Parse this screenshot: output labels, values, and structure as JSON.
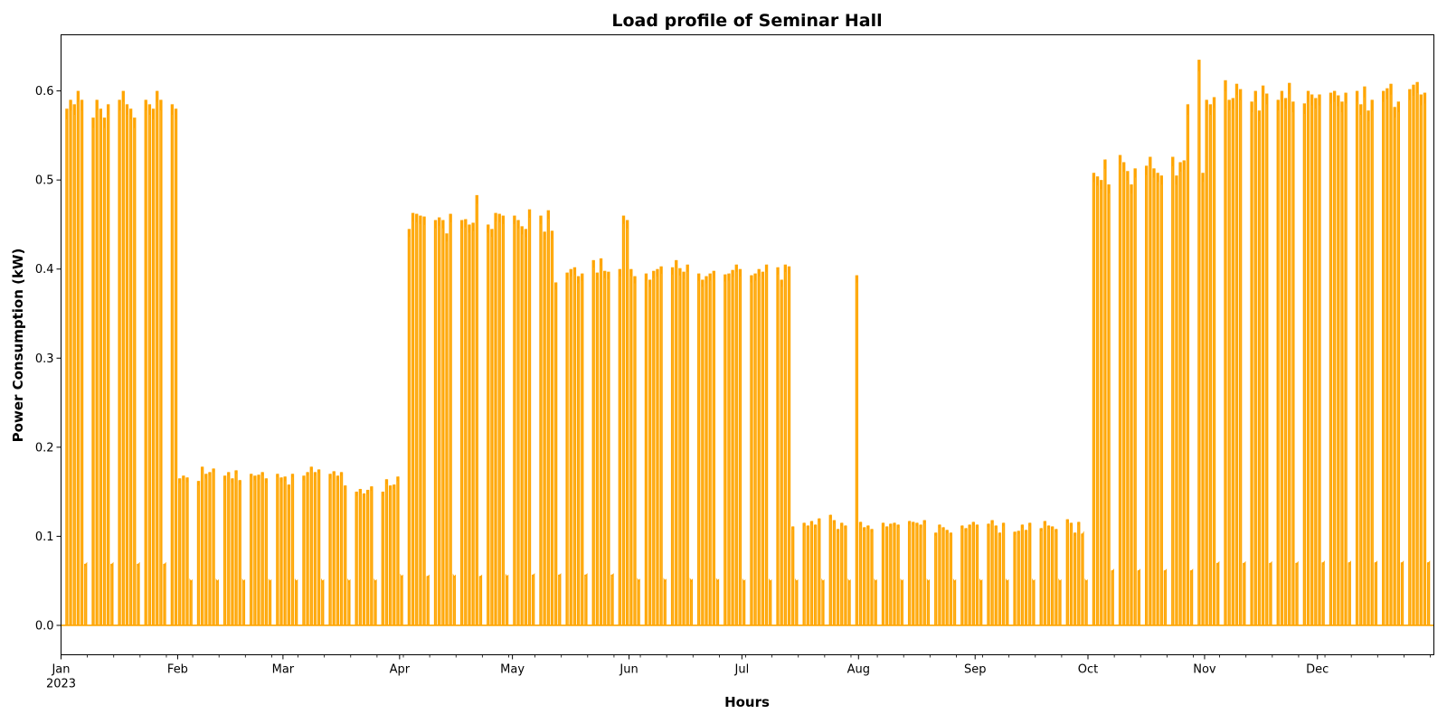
{
  "chart_data": {
    "type": "line",
    "title": "Load profile of Seminar Hall",
    "xlabel": "Hours",
    "ylabel": "Power Consumption (kW)",
    "x_range": [
      "2023-01-01",
      "2023-12-31"
    ],
    "ylim": [
      -0.033,
      0.663
    ],
    "y_ticks": [
      0.0,
      0.1,
      0.2,
      0.3,
      0.4,
      0.5,
      0.6
    ],
    "y_tick_labels": [
      "0.0",
      "0.1",
      "0.2",
      "0.3",
      "0.4",
      "0.5",
      "0.6"
    ],
    "x_ticks": [
      {
        "date": "2023-01-01",
        "label": "Jan",
        "sublabel": "2023"
      },
      {
        "date": "2023-02-01",
        "label": "Feb"
      },
      {
        "date": "2023-03-01",
        "label": "Mar"
      },
      {
        "date": "2023-04-01",
        "label": "Apr"
      },
      {
        "date": "2023-05-01",
        "label": "May"
      },
      {
        "date": "2023-06-01",
        "label": "Jun"
      },
      {
        "date": "2023-07-01",
        "label": "Jul"
      },
      {
        "date": "2023-08-01",
        "label": "Aug"
      },
      {
        "date": "2023-09-01",
        "label": "Sep"
      },
      {
        "date": "2023-10-01",
        "label": "Oct"
      },
      {
        "date": "2023-11-01",
        "label": "Nov"
      },
      {
        "date": "2023-12-01",
        "label": "Dec"
      }
    ],
    "grid": false,
    "legend": "none",
    "series_color": "#ffa500",
    "series": [
      {
        "values_description_note": "",
        "monthly_weekday_peak_kw": {
          "Jan": [
            0.58,
            0.59,
            0.585,
            0.6,
            0.59,
            0.57,
            0.59,
            0.58,
            0.57,
            0.585,
            0.59,
            0.6,
            0.585,
            0.58,
            0.57,
            0.59,
            0.585,
            0.58,
            0.6,
            0.59,
            0.585
          ],
          "Feb": [
            0.165,
            0.168,
            0.166,
            0.162,
            0.178,
            0.17,
            0.172,
            0.176,
            0.168,
            0.172,
            0.165,
            0.174,
            0.163,
            0.17,
            0.168,
            0.169,
            0.172,
            0.165,
            0.17,
            0.166
          ],
          "Mar": [
            0.167,
            0.158,
            0.17,
            0.168,
            0.172,
            0.178,
            0.172,
            0.175,
            0.17,
            0.173,
            0.168,
            0.172,
            0.157,
            0.15,
            0.153,
            0.148,
            0.152,
            0.156,
            0.15,
            0.164,
            0.157,
            0.158
          ],
          "Apr": [
            0.445,
            0.463,
            0.462,
            0.46,
            0.459,
            0.455,
            0.458,
            0.455,
            0.44,
            0.462,
            0.455,
            0.456,
            0.45,
            0.452,
            0.483,
            0.45
          ],
          "May": [
            0.46,
            0.455,
            0.448,
            0.445,
            0.467,
            0.46,
            0.442,
            0.466,
            0.443,
            0.385,
            0.396,
            0.4,
            0.402,
            0.392,
            0.395,
            0.41,
            0.396,
            0.412,
            0.398,
            0.397,
            0.4
          ],
          "Jun": [
            0.4,
            0.392,
            0.395,
            0.388,
            0.398,
            0.4,
            0.403,
            0.402,
            0.41,
            0.401,
            0.397,
            0.405,
            0.395,
            0.388,
            0.392,
            0.395,
            0.398,
            0.394,
            0.395,
            0.399,
            0.405
          ],
          "Jul": [
            0.393,
            0.395,
            0.4,
            0.397,
            0.405,
            0.402,
            0.388,
            0.405,
            0.403,
            0.111,
            0.115,
            0.112,
            0.117,
            0.113,
            0.12,
            0.124,
            0.118,
            0.108,
            0.115,
            0.112
          ],
          "Aug": [
            0.116,
            0.11,
            0.112,
            0.108,
            0.115,
            0.111,
            0.114,
            0.115,
            0.113,
            0.117,
            0.116,
            0.115,
            0.113,
            0.118,
            0.104,
            0.113,
            0.11,
            0.107,
            0.104,
            0.112,
            0.109,
            0.113
          ],
          "Sep": [
            0.113,
            0.114,
            0.118,
            0.112,
            0.104,
            0.115,
            0.105,
            0.106,
            0.113,
            0.107,
            0.115,
            0.109,
            0.117,
            0.112,
            0.111,
            0.108,
            0.119,
            0.115,
            0.104,
            0.116,
            0.103
          ],
          "Oct": [
            0.508,
            0.504,
            0.5,
            0.523,
            0.495,
            0.528,
            0.52,
            0.51,
            0.495,
            0.513,
            0.516,
            0.526,
            0.513,
            0.508,
            0.505,
            0.526,
            0.505,
            0.52,
            0.522,
            0.585,
            0.635
          ],
          "Nov": [
            0.59,
            0.585,
            0.593,
            0.612,
            0.59,
            0.592,
            0.608,
            0.602,
            0.588,
            0.6,
            0.578,
            0.606,
            0.597,
            0.59,
            0.6,
            0.592,
            0.609,
            0.588,
            0.586,
            0.6,
            0.596,
            0.592
          ],
          "Dec": [
            0.596,
            0.598,
            0.6,
            0.595,
            0.588,
            0.598,
            0.6,
            0.585,
            0.605,
            0.578,
            0.59,
            0.6,
            0.603,
            0.608,
            0.582,
            0.588,
            0.602,
            0.607,
            0.61
          ]
        }
      }
    ]
  }
}
